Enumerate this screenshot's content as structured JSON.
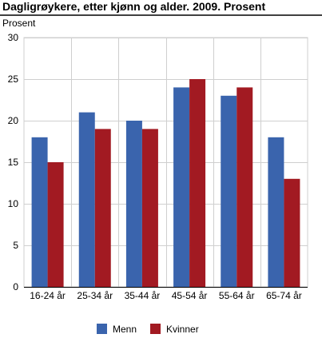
{
  "chart_data": {
    "type": "bar",
    "title": "Dagligrøykere, etter kjønn og alder. 2009. Prosent",
    "ylabel": "Prosent",
    "xlabel": "",
    "ylim": [
      0,
      30
    ],
    "yticks": [
      0,
      5,
      10,
      15,
      20,
      25,
      30
    ],
    "grid": true,
    "legend_position": "bottom",
    "categories": [
      "16-24 år",
      "25-34 år",
      "35-44 år",
      "45-54 år",
      "55-64 år",
      "65-74 år"
    ],
    "series": [
      {
        "name": "Menn",
        "color": "#3a64ad",
        "values": [
          18,
          21,
          20,
          24,
          23,
          18
        ]
      },
      {
        "name": "Kvinner",
        "color": "#a21a22",
        "values": [
          15,
          19,
          19,
          25,
          24,
          13
        ]
      }
    ]
  }
}
